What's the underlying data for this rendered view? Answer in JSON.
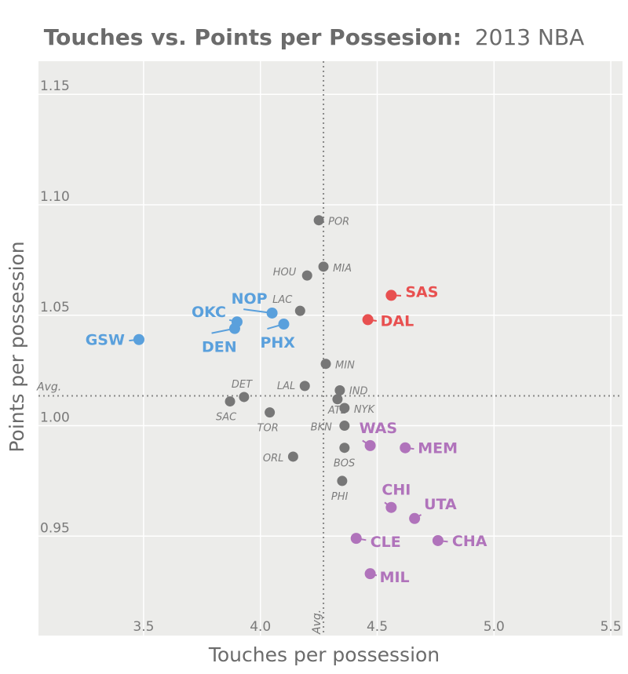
{
  "chart_data": {
    "type": "scatter",
    "title_bold": "Touches vs. Points per Possesion:",
    "title_rest": "2013 NBA",
    "xlabel": "Touches per possession",
    "ylabel": "Points per possession",
    "xlim": [
      3.05,
      5.55
    ],
    "ylim": [
      0.905,
      1.165
    ],
    "x_ticks": [
      {
        "value": 3.5,
        "label": "3.5"
      },
      {
        "value": 4.0,
        "label": "4.0"
      },
      {
        "value": 4.5,
        "label": "4.5"
      },
      {
        "value": 5.0,
        "label": "5.0"
      },
      {
        "value": 5.5,
        "label": "5.5"
      }
    ],
    "y_ticks": [
      {
        "value": 0.95,
        "label": "0.95"
      },
      {
        "value": 1.0,
        "label": "1.00"
      },
      {
        "value": 1.05,
        "label": "1.05"
      },
      {
        "value": 1.1,
        "label": "1.10"
      },
      {
        "value": 1.15,
        "label": "1.15"
      }
    ],
    "avg": {
      "x": 4.27,
      "y": 1.0135,
      "x_label": "Avg.",
      "y_label": "Avg."
    },
    "grid": true,
    "colors": {
      "gray": "#777777",
      "blue": "#5aa0dc",
      "red": "#e85050",
      "purple": "#b073bb",
      "background": "#ececea",
      "grid": "#ffffff",
      "avg_line": "#888888"
    },
    "points": [
      {
        "team": "POR",
        "x": 4.25,
        "y": 1.093,
        "group": "gray"
      },
      {
        "team": "MIA",
        "x": 4.27,
        "y": 1.072,
        "group": "gray"
      },
      {
        "team": "HOU",
        "x": 4.2,
        "y": 1.068,
        "group": "gray"
      },
      {
        "team": "LAC",
        "x": 4.17,
        "y": 1.052,
        "group": "gray"
      },
      {
        "team": "MIN",
        "x": 4.28,
        "y": 1.028,
        "group": "gray"
      },
      {
        "team": "LAL",
        "x": 4.19,
        "y": 1.018,
        "group": "gray"
      },
      {
        "team": "IND",
        "x": 4.34,
        "y": 1.016,
        "group": "gray"
      },
      {
        "team": "ATL",
        "x": 4.33,
        "y": 1.012,
        "group": "gray"
      },
      {
        "team": "NYK",
        "x": 4.36,
        "y": 1.008,
        "group": "gray"
      },
      {
        "team": "DET",
        "x": 3.93,
        "y": 1.013,
        "group": "gray"
      },
      {
        "team": "SAC",
        "x": 3.87,
        "y": 1.011,
        "group": "gray"
      },
      {
        "team": "TOR",
        "x": 4.04,
        "y": 1.006,
        "group": "gray"
      },
      {
        "team": "BKN",
        "x": 4.36,
        "y": 1.0,
        "group": "gray"
      },
      {
        "team": "BOS",
        "x": 4.36,
        "y": 0.99,
        "group": "gray"
      },
      {
        "team": "ORL",
        "x": 4.14,
        "y": 0.986,
        "group": "gray"
      },
      {
        "team": "PHI",
        "x": 4.35,
        "y": 0.975,
        "group": "gray"
      },
      {
        "team": "GSW",
        "x": 3.48,
        "y": 1.039,
        "group": "blue"
      },
      {
        "team": "OKC",
        "x": 3.9,
        "y": 1.047,
        "group": "blue"
      },
      {
        "team": "DEN",
        "x": 3.89,
        "y": 1.044,
        "group": "blue"
      },
      {
        "team": "NOP",
        "x": 4.05,
        "y": 1.051,
        "group": "blue"
      },
      {
        "team": "PHX",
        "x": 4.1,
        "y": 1.046,
        "group": "blue"
      },
      {
        "team": "SAS",
        "x": 4.56,
        "y": 1.059,
        "group": "red"
      },
      {
        "team": "DAL",
        "x": 4.46,
        "y": 1.048,
        "group": "red"
      },
      {
        "team": "WAS",
        "x": 4.47,
        "y": 0.991,
        "group": "purple"
      },
      {
        "team": "MEM",
        "x": 4.62,
        "y": 0.99,
        "group": "purple"
      },
      {
        "team": "CHI",
        "x": 4.56,
        "y": 0.963,
        "group": "purple"
      },
      {
        "team": "UTA",
        "x": 4.66,
        "y": 0.958,
        "group": "purple"
      },
      {
        "team": "CLE",
        "x": 4.41,
        "y": 0.949,
        "group": "purple"
      },
      {
        "team": "CHA",
        "x": 4.76,
        "y": 0.948,
        "group": "purple"
      },
      {
        "team": "MIL",
        "x": 4.47,
        "y": 0.933,
        "group": "purple"
      }
    ]
  }
}
